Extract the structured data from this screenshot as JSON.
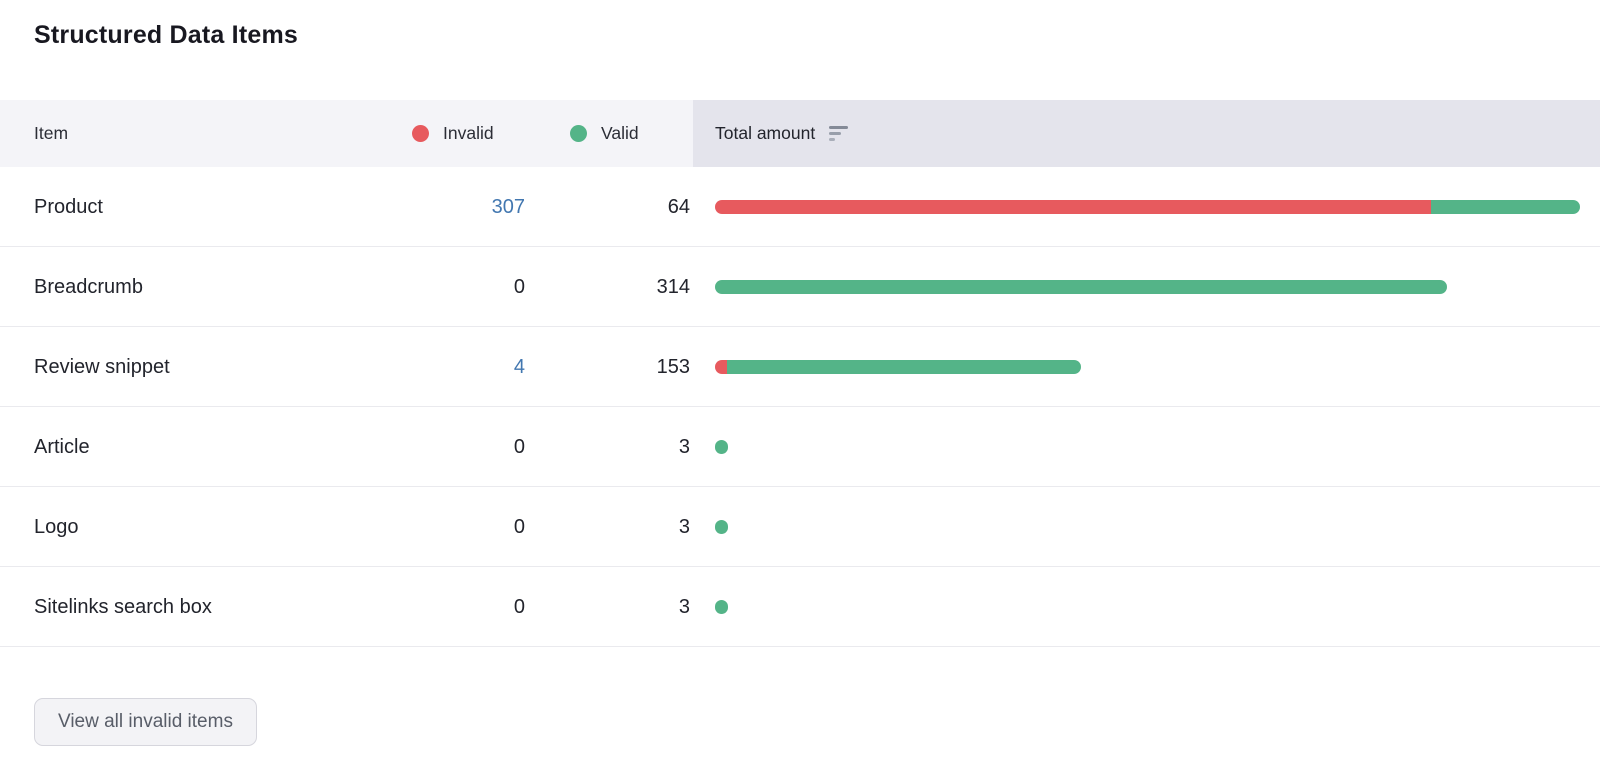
{
  "title": "Structured Data Items",
  "colors": {
    "invalid": "#e75a5e",
    "valid": "#54b488",
    "link": "#4277b0",
    "header_bg": "#f4f4f8",
    "header_total_bg": "#e4e4ec"
  },
  "header": {
    "item_label": "Item",
    "legend": {
      "invalid_label": "Invalid",
      "valid_label": "Valid"
    },
    "total_label": "Total amount",
    "sort_icon": "sort-descending-icon"
  },
  "table": {
    "items": [
      {
        "name": "Product",
        "invalid": 307,
        "valid": 64,
        "invalid_is_link": true
      },
      {
        "name": "Breadcrumb",
        "invalid": 0,
        "valid": 314,
        "invalid_is_link": false
      },
      {
        "name": "Review snippet",
        "invalid": 4,
        "valid": 153,
        "invalid_is_link": true
      },
      {
        "name": "Article",
        "invalid": 0,
        "valid": 3,
        "invalid_is_link": false
      },
      {
        "name": "Logo",
        "invalid": 0,
        "valid": 3,
        "invalid_is_link": false
      },
      {
        "name": "Sitelinks search box",
        "invalid": 0,
        "valid": 3,
        "invalid_is_link": false
      }
    ]
  },
  "footer": {
    "view_all_button": "View all invalid items"
  },
  "chart_data": {
    "type": "bar",
    "orientation": "horizontal",
    "stacked": true,
    "categories": [
      "Product",
      "Breadcrumb",
      "Review snippet",
      "Article",
      "Logo",
      "Sitelinks search box"
    ],
    "series": [
      {
        "name": "Invalid",
        "color": "#e75a5e",
        "values": [
          307,
          0,
          4,
          0,
          0,
          0
        ]
      },
      {
        "name": "Valid",
        "color": "#54b488",
        "values": [
          64,
          314,
          153,
          3,
          3,
          3
        ]
      }
    ],
    "title": "Structured Data Items",
    "xlabel": "Total amount",
    "xlim": [
      0,
      371
    ],
    "grid": false,
    "legend_position": "table-header"
  }
}
